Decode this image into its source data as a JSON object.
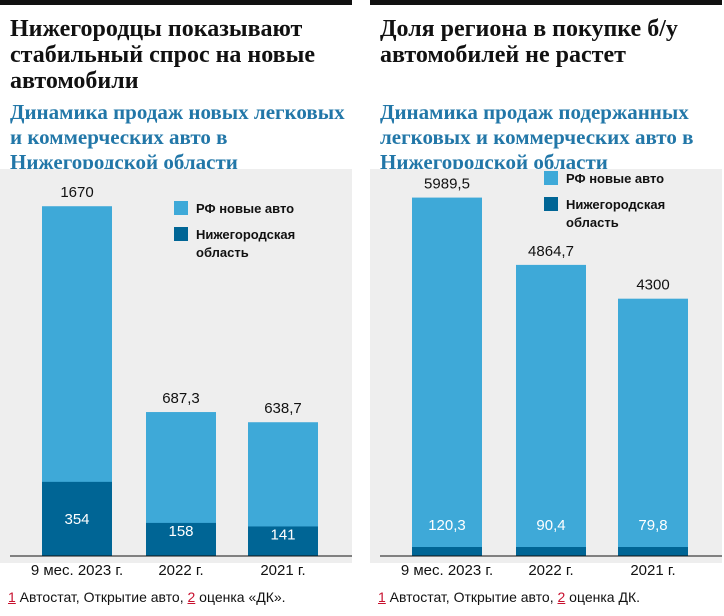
{
  "colors": {
    "rf": "#3ea9d8",
    "region": "#006595",
    "subtitle": "#2277a8",
    "footnote_marker": "#c8102e"
  },
  "left": {
    "title": "Нижегородцы показывают стабильный спрос на новые автомобили",
    "subtitle": "Динамика продаж новых легковых и коммерческих авто в Нижегородской области",
    "footnote": {
      "n1": "1",
      "t1": " Автостат, Открытие авто, ",
      "n2": "2",
      "t2": " оценка «ДК»."
    }
  },
  "right": {
    "title": "Доля региона в покупке б/у автомобилей не растет",
    "subtitle": "Динамика продаж подержанных легковых и коммерческих авто в Нижегородской области",
    "footnote": {
      "n1": "1",
      "t1": " Автостат, Открытие авто, ",
      "n2": "2",
      "t2": " оценка ДК."
    }
  },
  "chart_data": [
    {
      "type": "bar",
      "title": "Динамика продаж новых легковых и коммерческих авто в Нижегородской области",
      "categories": [
        "9 мес. 2023 г.",
        "2022 г.",
        "2021 г."
      ],
      "series": [
        {
          "name": "РФ новые авто",
          "values": [
            1670,
            687.3,
            638.7
          ],
          "labels": [
            "1670",
            "687,3",
            "638,7"
          ]
        },
        {
          "name": "Нижегородская область",
          "values": [
            354,
            158,
            141
          ],
          "labels": [
            "354",
            "158",
            "141"
          ]
        }
      ],
      "legend": [
        "РФ новые авто",
        "Нижегородская область"
      ],
      "ylim": [
        0,
        1800
      ]
    },
    {
      "type": "bar",
      "title": "Динамика продаж подержанных легковых и коммерческих авто в Нижегородской области",
      "categories": [
        "9 мес. 2023 г.",
        "2022 г.",
        "2021 г."
      ],
      "series": [
        {
          "name": "РФ новые авто",
          "values": [
            5989.5,
            4864.7,
            4300
          ],
          "labels": [
            "5989,5",
            "4864,7",
            "4300"
          ]
        },
        {
          "name": "Нижегородская область",
          "values": [
            120.3,
            90.4,
            79.8
          ],
          "labels": [
            "120,3",
            "90,4",
            "79,8"
          ]
        }
      ],
      "legend": [
        "РФ новые авто",
        "Нижегородская область"
      ],
      "ylim": [
        0,
        6300
      ]
    }
  ]
}
